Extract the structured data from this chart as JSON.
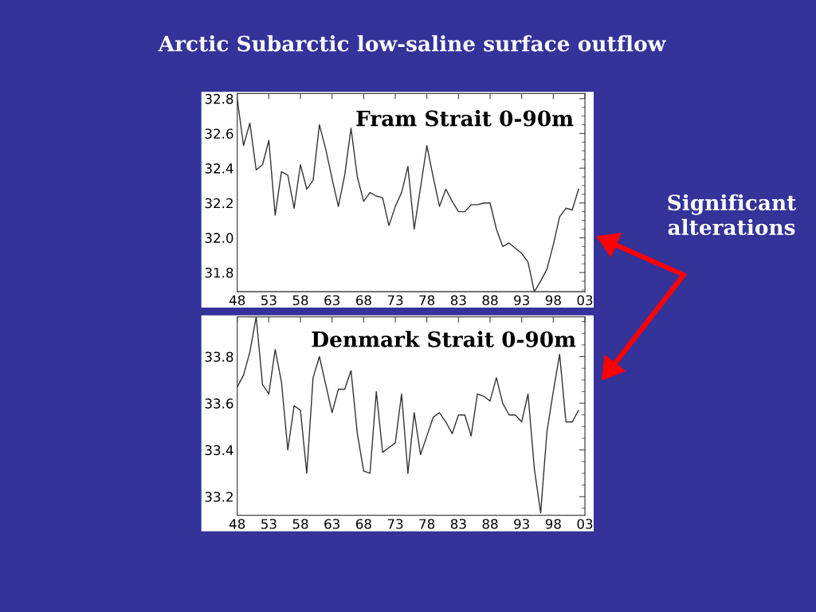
{
  "chart_data": [
    {
      "type": "line",
      "title": "Arctic Subarctic low-saline surface outflow",
      "subtitle": "Fram Strait 0-90m",
      "annotations": [
        "Significant alterations"
      ],
      "x": [
        1948,
        1949,
        1950,
        1951,
        1952,
        1953,
        1954,
        1955,
        1956,
        1957,
        1958,
        1959,
        1960,
        1961,
        1962,
        1963,
        1964,
        1965,
        1966,
        1967,
        1968,
        1969,
        1970,
        1971,
        1972,
        1973,
        1974,
        1975,
        1976,
        1977,
        1978,
        1979,
        1980,
        1981,
        1982,
        1983,
        1984,
        1985,
        1986,
        1987,
        1988,
        1989,
        1990,
        1991,
        1992,
        1993,
        1994,
        1995,
        1996,
        1997,
        1998,
        1999,
        2000,
        2001,
        2002
      ],
      "series": [
        {
          "color": "#333333",
          "values": [
            32.8,
            32.53,
            32.66,
            32.39,
            32.42,
            32.56,
            32.13,
            32.38,
            32.36,
            32.17,
            32.42,
            32.28,
            32.33,
            32.65,
            32.51,
            32.34,
            32.18,
            32.36,
            32.63,
            32.35,
            32.21,
            32.26,
            32.24,
            32.23,
            32.07,
            32.18,
            32.26,
            32.41,
            32.05,
            32.29,
            32.53,
            32.35,
            32.18,
            32.28,
            32.21,
            32.15,
            32.15,
            32.19,
            32.19,
            32.2,
            32.2,
            32.05,
            31.95,
            31.97,
            31.94,
            31.91,
            31.86,
            31.69,
            31.75,
            31.82,
            31.96,
            32.12,
            32.17,
            32.16,
            32.28
          ]
        }
      ],
      "xlim": [
        1948,
        2003
      ],
      "xticks": [
        {
          "value": 1948,
          "label": "48"
        },
        {
          "value": 1953,
          "label": "53"
        },
        {
          "value": 1958,
          "label": "58"
        },
        {
          "value": 1963,
          "label": "63"
        },
        {
          "value": 1968,
          "label": "68"
        },
        {
          "value": 1973,
          "label": "73"
        },
        {
          "value": 1978,
          "label": "78"
        },
        {
          "value": 1983,
          "label": "83"
        },
        {
          "value": 1988,
          "label": "88"
        },
        {
          "value": 1993,
          "label": "93"
        },
        {
          "value": 1998,
          "label": "98"
        },
        {
          "value": 2003,
          "label": "03"
        }
      ],
      "ylim": [
        31.69,
        32.83
      ],
      "yticks": [
        31.8,
        {
          "value": 32.0,
          "label": "32.0"
        },
        32.2,
        32.4,
        32.6,
        32.8
      ],
      "grid": false,
      "marker": "none",
      "line_style": "solid"
    },
    {
      "type": "line",
      "subtitle": "Denmark Strait 0-90m",
      "x": [
        1948,
        1949,
        1950,
        1951,
        1952,
        1953,
        1954,
        1955,
        1956,
        1957,
        1958,
        1959,
        1960,
        1961,
        1962,
        1963,
        1964,
        1965,
        1966,
        1967,
        1968,
        1969,
        1970,
        1971,
        1972,
        1973,
        1974,
        1975,
        1976,
        1977,
        1978,
        1979,
        1980,
        1981,
        1982,
        1983,
        1984,
        1985,
        1986,
        1987,
        1988,
        1989,
        1990,
        1991,
        1992,
        1993,
        1994,
        1995,
        1996,
        1997,
        1998,
        1999,
        2000,
        2001,
        2002
      ],
      "series": [
        {
          "color": "#333333",
          "values": [
            33.67,
            33.72,
            33.82,
            33.97,
            33.68,
            33.64,
            33.83,
            33.69,
            33.4,
            33.59,
            33.57,
            33.3,
            33.71,
            33.8,
            33.68,
            33.56,
            33.66,
            33.66,
            33.74,
            33.47,
            33.31,
            33.3,
            33.65,
            33.39,
            33.41,
            33.43,
            33.64,
            33.3,
            33.56,
            33.38,
            33.46,
            33.54,
            33.56,
            33.52,
            33.47,
            33.55,
            33.55,
            33.46,
            33.64,
            33.63,
            33.61,
            33.71,
            33.6,
            33.55,
            33.55,
            33.52,
            33.64,
            33.32,
            33.13,
            33.48,
            33.65,
            33.81,
            33.52,
            33.52,
            33.57
          ]
        }
      ],
      "xlim": [
        1948,
        2003
      ],
      "xticks": [
        {
          "value": 1948,
          "label": "48"
        },
        {
          "value": 1953,
          "label": "53"
        },
        {
          "value": 1958,
          "label": "58"
        },
        {
          "value": 1963,
          "label": "63"
        },
        {
          "value": 1968,
          "label": "68"
        },
        {
          "value": 1973,
          "label": "73"
        },
        {
          "value": 1978,
          "label": "78"
        },
        {
          "value": 1983,
          "label": "83"
        },
        {
          "value": 1988,
          "label": "88"
        },
        {
          "value": 1993,
          "label": "93"
        },
        {
          "value": 1998,
          "label": "98"
        },
        {
          "value": 2003,
          "label": "03"
        }
      ],
      "ylim": [
        33.12,
        33.97
      ],
      "yticks": [
        33.2,
        33.4,
        33.6,
        33.8
      ],
      "grid": false,
      "marker": "none",
      "line_style": "solid"
    }
  ]
}
